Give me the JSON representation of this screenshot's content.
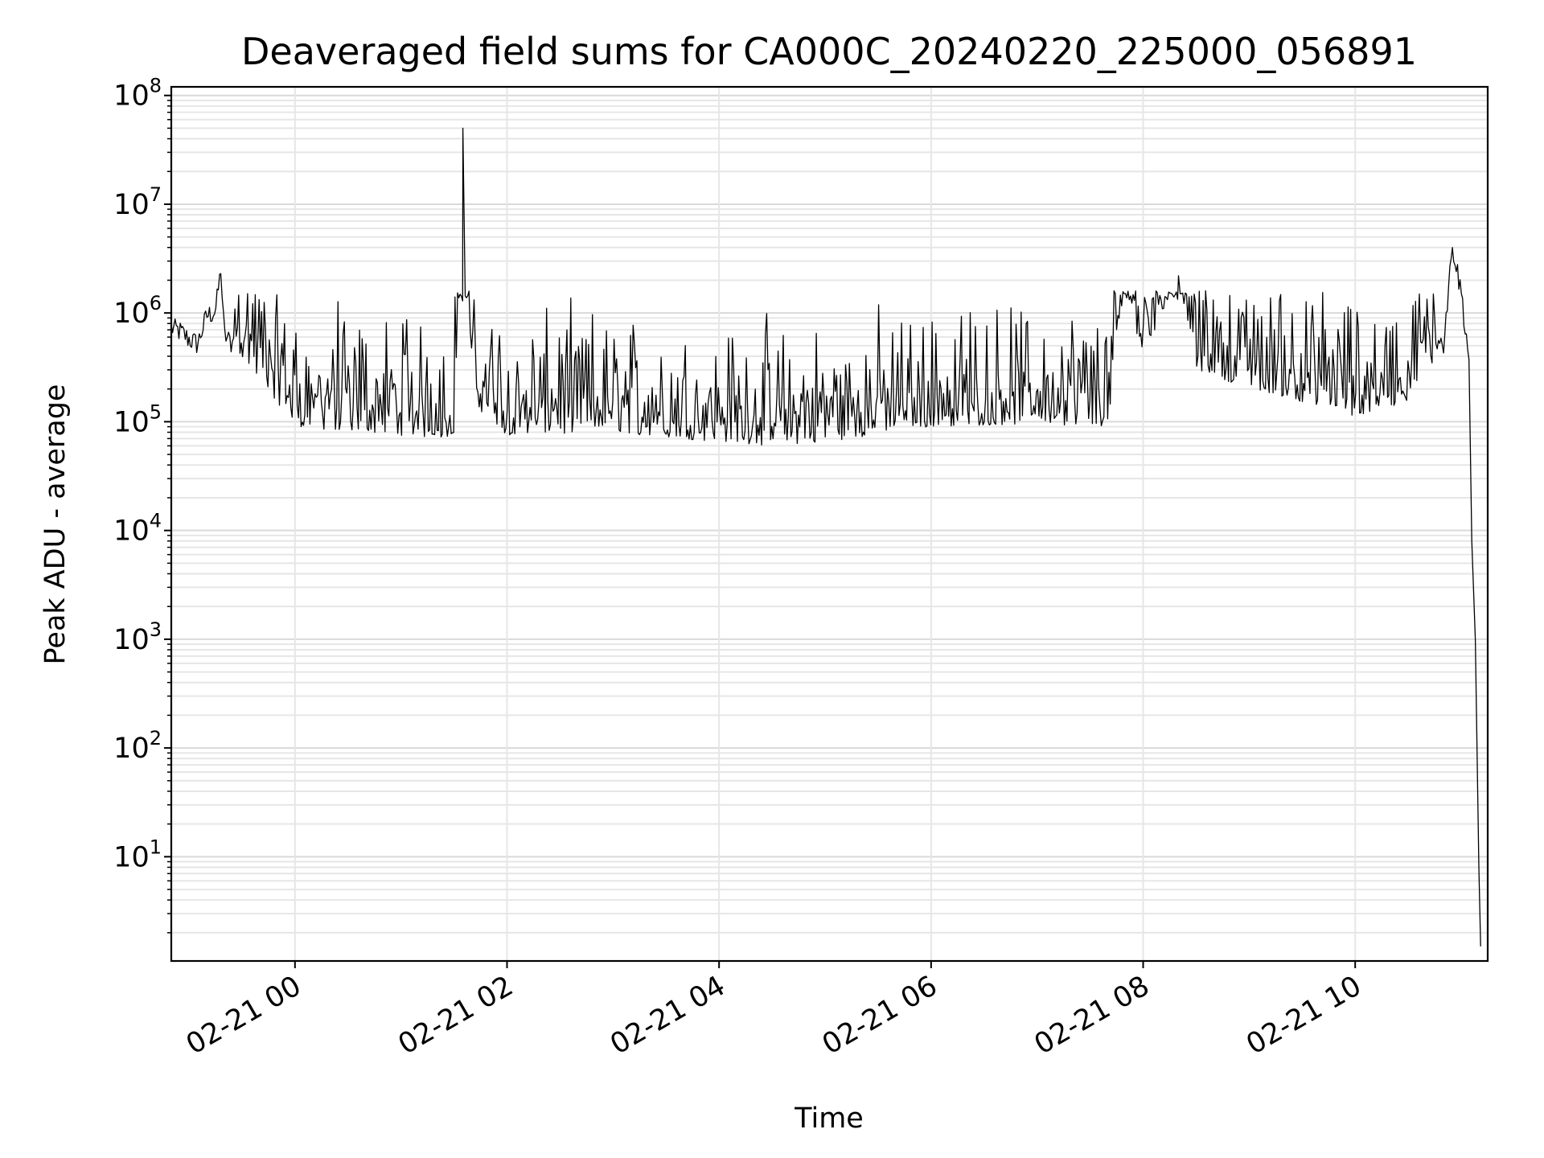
{
  "chart_data": {
    "type": "line",
    "title": "Deaveraged field sums for CA000C_20240220_225000_056891",
    "xlabel": "Time",
    "ylabel": "Peak ADU - average",
    "xscale": "time",
    "yscale": "log",
    "xlim": [
      "02-20 22:50",
      "02-21 11:15"
    ],
    "ylim": [
      1.1,
      120000000
    ],
    "grid": true,
    "x_ticks": [
      {
        "label": "02-21 00",
        "hour": 24
      },
      {
        "label": "02-21 02",
        "hour": 26
      },
      {
        "label": "02-21 04",
        "hour": 28
      },
      {
        "label": "02-21 06",
        "hour": 30
      },
      {
        "label": "02-21 08",
        "hour": 32
      },
      {
        "label": "02-21 10",
        "hour": 34
      }
    ],
    "y_ticks": [
      {
        "base": "10",
        "exp": "1",
        "value": 10
      },
      {
        "base": "10",
        "exp": "2",
        "value": 100
      },
      {
        "base": "10",
        "exp": "3",
        "value": 1000
      },
      {
        "base": "10",
        "exp": "4",
        "value": 10000
      },
      {
        "base": "10",
        "exp": "5",
        "value": 100000
      },
      {
        "base": "10",
        "exp": "6",
        "value": 1000000
      },
      {
        "base": "10",
        "exp": "7",
        "value": 10000000
      },
      {
        "base": "10",
        "exp": "8",
        "value": 100000000
      }
    ],
    "series": [
      {
        "color": "#000000",
        "points": [
          [
            "02-20 22:50",
            700000
          ],
          [
            "02-20 22:55",
            650000
          ],
          [
            "02-20 23:00",
            550000
          ],
          [
            "02-20 23:05",
            500000
          ],
          [
            "02-20 23:10",
            900000
          ],
          [
            "02-20 23:15",
            1000000
          ],
          [
            "02-20 23:18",
            2300000
          ],
          [
            "02-20 23:20",
            600000
          ],
          [
            "02-20 23:30",
            400000
          ],
          [
            "02-20 23:40",
            250000
          ],
          [
            "02-20 23:50",
            150000
          ],
          [
            "02-21 00:00",
            90000
          ],
          [
            "02-21 00:30",
            80000
          ],
          [
            "02-21 01:00",
            75000
          ],
          [
            "02-21 01:30",
            70000
          ],
          [
            "02-21 01:35",
            50000000
          ],
          [
            "02-21 01:40",
            150000
          ],
          [
            "02-21 02:00",
            75000
          ],
          [
            "02-21 03:00",
            80000
          ],
          [
            "02-21 04:00",
            65000
          ],
          [
            "02-21 04:30",
            60000
          ],
          [
            "02-21 05:00",
            65000
          ],
          [
            "02-21 06:00",
            90000
          ],
          [
            "02-21 07:00",
            95000
          ],
          [
            "02-21 07:40",
            90000
          ],
          [
            "02-21 07:50",
            1500000
          ],
          [
            "02-21 08:00",
            400000
          ],
          [
            "02-21 08:20",
            2200000
          ],
          [
            "02-21 08:30",
            300000
          ],
          [
            "02-21 09:00",
            200000
          ],
          [
            "02-21 09:30",
            150000
          ],
          [
            "02-21 10:00",
            110000
          ],
          [
            "02-21 10:30",
            150000
          ],
          [
            "02-21 10:50",
            500000
          ],
          [
            "02-21 10:55",
            4000000
          ],
          [
            "02-21 11:00",
            1500000
          ],
          [
            "02-21 11:05",
            300000
          ],
          [
            "02-21 11:06",
            8000
          ],
          [
            "02-21 11:08",
            1000
          ],
          [
            "02-21 11:10",
            8
          ],
          [
            "02-21 11:11",
            1.5
          ]
        ]
      }
    ]
  }
}
